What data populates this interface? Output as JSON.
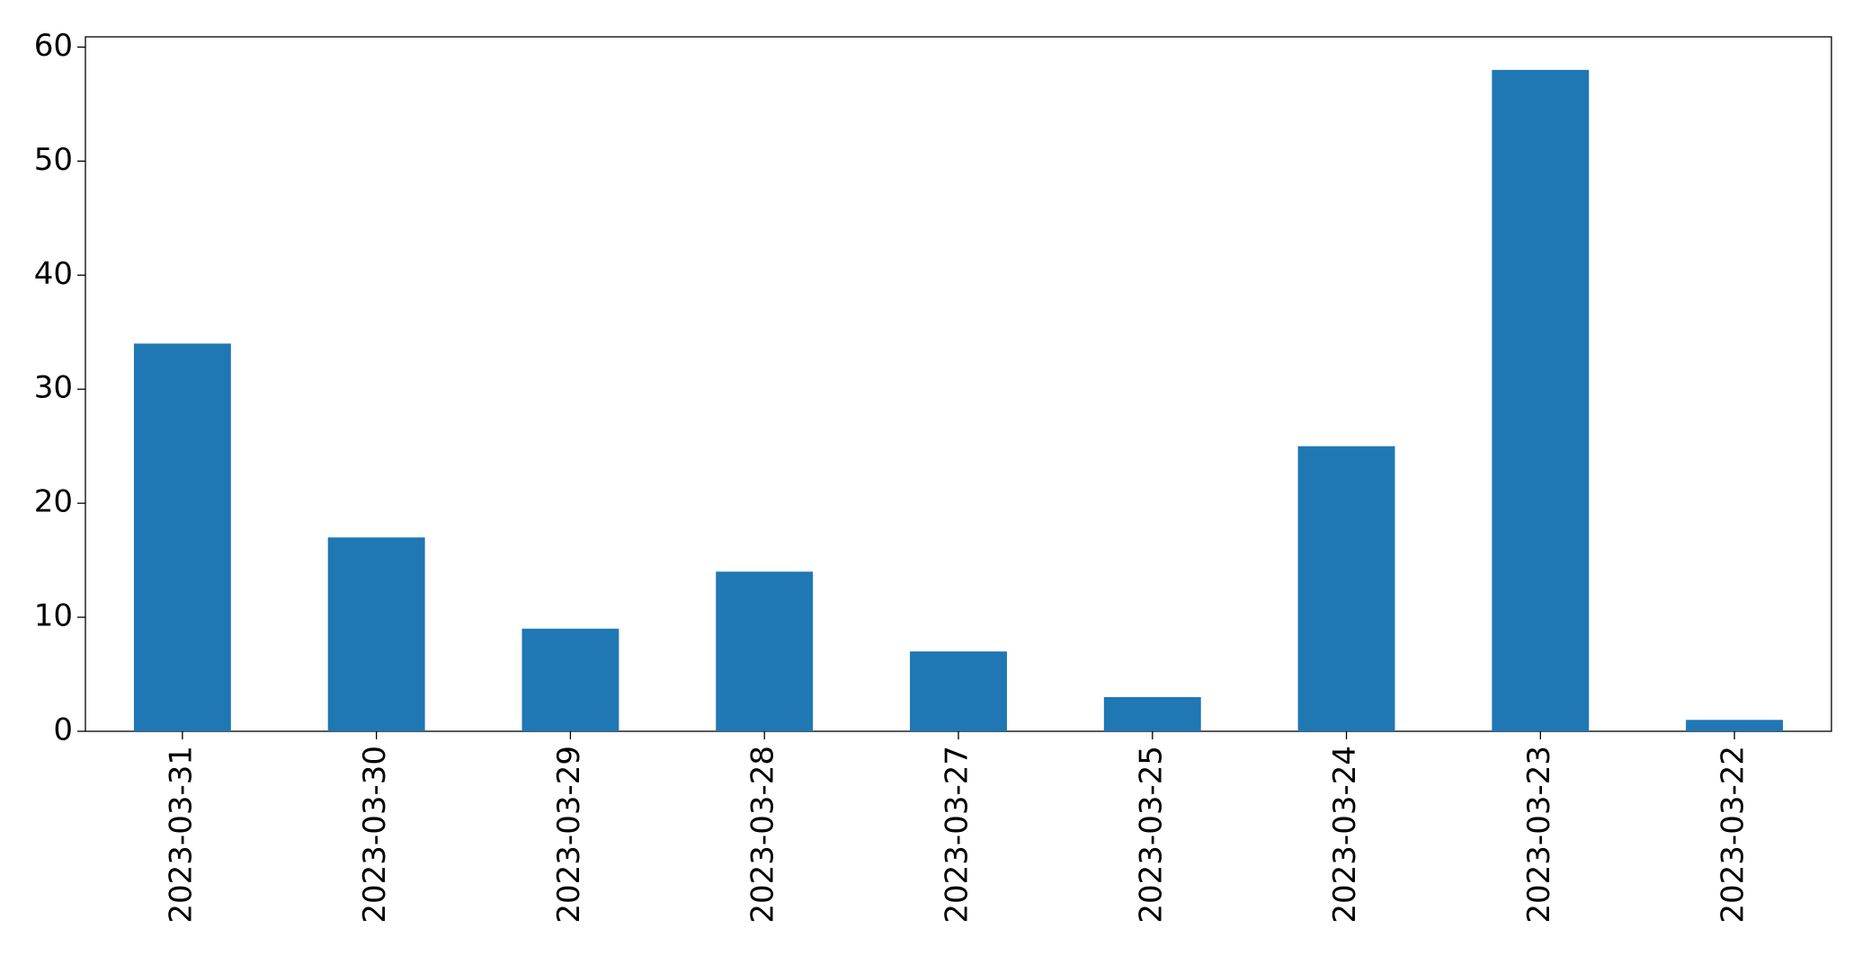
{
  "chart_data": {
    "type": "bar",
    "categories": [
      "2023-03-31",
      "2023-03-30",
      "2023-03-29",
      "2023-03-28",
      "2023-03-27",
      "2023-03-25",
      "2023-03-24",
      "2023-03-23",
      "2023-03-22"
    ],
    "values": [
      34,
      17,
      9,
      14,
      7,
      3,
      25,
      58,
      1
    ],
    "color": "#1f77b4",
    "ylim": [
      0,
      60.9
    ],
    "yticks": [
      0,
      10,
      20,
      30,
      40,
      50,
      60
    ],
    "grid": false
  }
}
